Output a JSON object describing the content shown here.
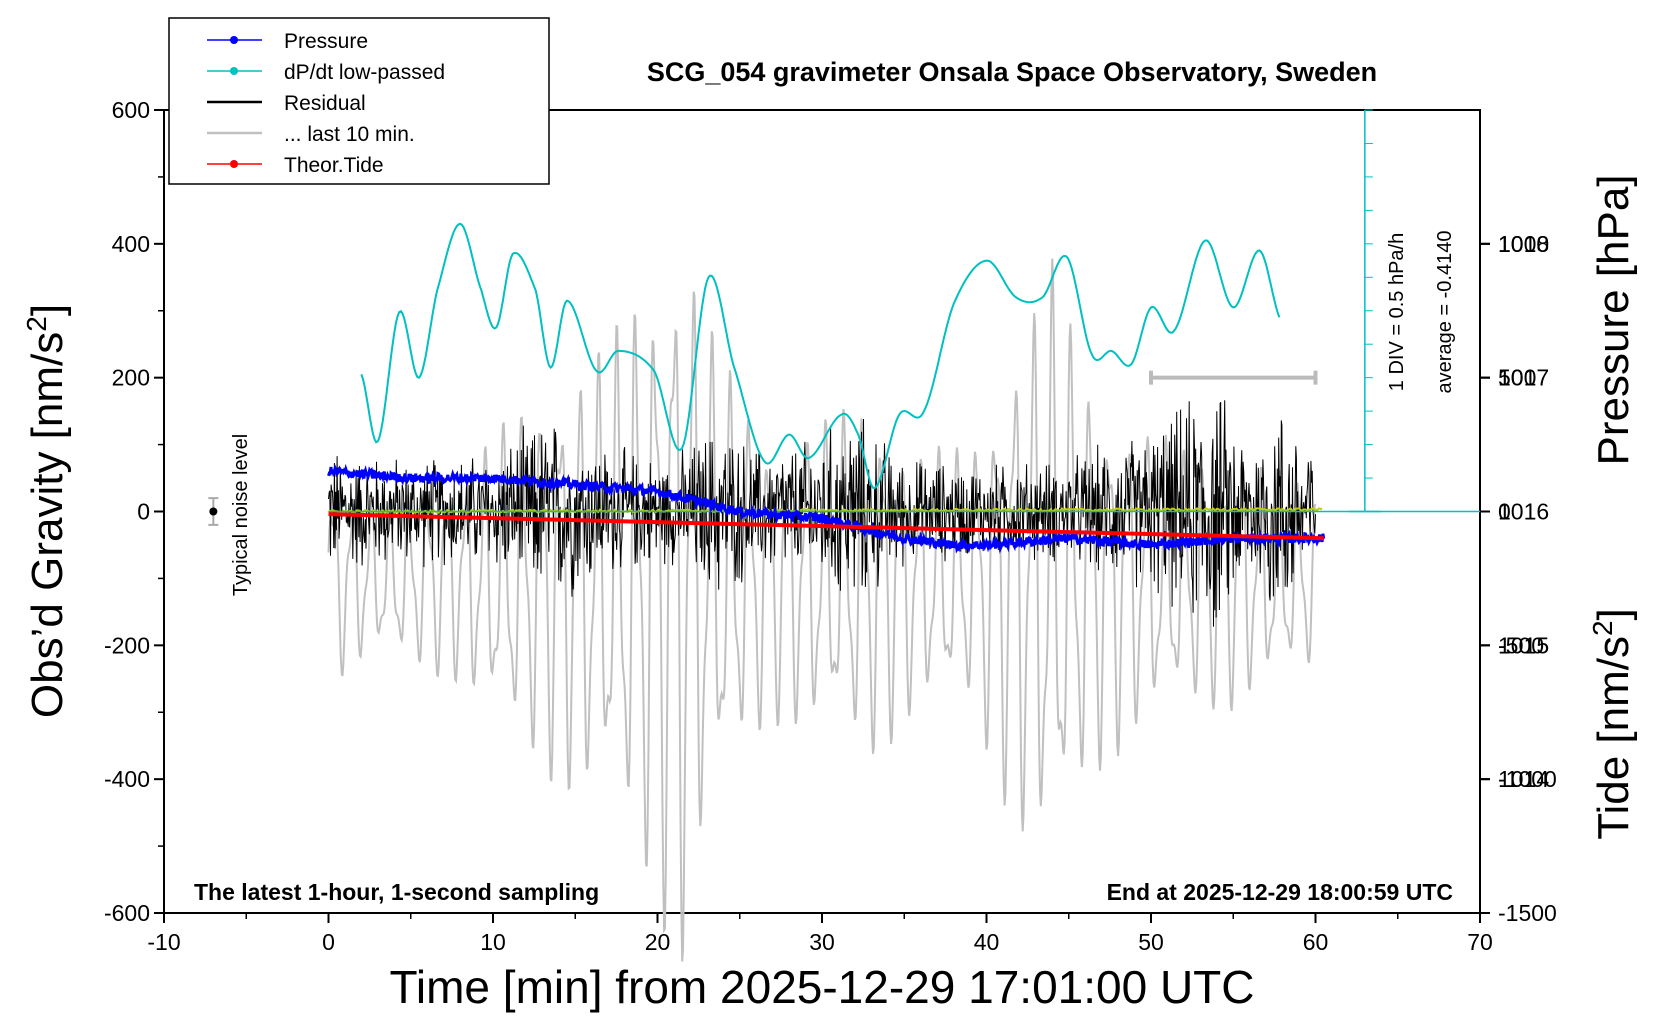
{
  "chart_data": {
    "type": "line",
    "title": "SCG_054 gravimeter Onsala Space Observatory, Sweden",
    "xlabel": "Time [min] from 2025-12-29 17:01:00 UTC",
    "ylabel_left_main": "Obs’d Gravity [nm/s",
    "ylabel_left_sup": "2",
    "ylabel_left_close": "]",
    "ylabel_right_top": "Pressure [hPa]",
    "ylabel_right_bottom_main": "Tide [nm/s",
    "ylabel_right_bottom_sup": "2",
    "ylabel_right_bottom_close": "]",
    "xlim": [
      -10,
      70
    ],
    "ylim": [
      -600,
      600
    ],
    "pressure_ylim": [
      1013,
      1019
    ],
    "tide_ylim": [
      -1500,
      1500
    ],
    "x_ticks": [
      "-10",
      "0",
      "10",
      "20",
      "30",
      "40",
      "50",
      "60",
      "70"
    ],
    "y_ticks": [
      "-600",
      "-400",
      "-200",
      "0",
      "200",
      "400",
      "600"
    ],
    "pressure_ticks": [
      "1014",
      "1015",
      "1016",
      "1017",
      "1018"
    ],
    "tide_ticks": [
      "-1500",
      "-1000",
      "-500",
      "0",
      "500",
      "1000"
    ],
    "legend": [
      {
        "label": "Pressure",
        "color": "#0000ff",
        "marker": true
      },
      {
        "label": "dP/dt low-passed",
        "color": "#00c0c0",
        "marker": true
      },
      {
        "label": "Residual",
        "color": "#000000",
        "marker": false
      },
      {
        "label": "... last 10 min.",
        "color": "#c0c0c0",
        "marker": false
      },
      {
        "label": "Theor.Tide",
        "color": "#ff0000",
        "marker": true
      }
    ],
    "annotations": {
      "noise_label": "Typical noise level",
      "dpdt_scale": "1 DIV = 0.5 hPa/h",
      "dpdt_average": "average = -0.4140",
      "bottom_left": "The latest 1-hour, 1-second sampling",
      "bottom_right": "End at 2025-12-29 18:00:59 UTC"
    },
    "series": [
      {
        "name": "Pressure",
        "axis": "pressure",
        "color": "#0000ff",
        "x": [
          0,
          5,
          10,
          15,
          20,
          25,
          30,
          35,
          38,
          40,
          45,
          50,
          55,
          60.5
        ],
        "y": [
          1016.3,
          1016.25,
          1016.25,
          1016.2,
          1016.15,
          1016.0,
          1015.95,
          1015.8,
          1015.75,
          1015.75,
          1015.8,
          1015.75,
          1015.8,
          1015.8
        ]
      },
      {
        "name": "dP/dt low-passed",
        "axis": "gravity",
        "color": "#00c0c0",
        "x": [
          2,
          3,
          4.3,
          5.5,
          6.6,
          8,
          9.3,
          10.2,
          11.2,
          12.6,
          13.5,
          14.5,
          16.3,
          17.6,
          19.8,
          21.5,
          23.1,
          24.6,
          26.5,
          28,
          29.2,
          31.2,
          32.2,
          33.2,
          34.7,
          36.2,
          38,
          40,
          41.8,
          43.4,
          44.9,
          46.4,
          47.6,
          48.8,
          50,
          51.4,
          53.3,
          55,
          56.6,
          57.9
        ],
        "y": [
          205,
          105,
          298,
          200,
          330,
          430,
          330,
          275,
          385,
          330,
          215,
          315,
          210,
          240,
          210,
          95,
          350,
          220,
          75,
          115,
          80,
          145,
          115,
          35,
          145,
          150,
          310,
          375,
          320,
          320,
          380,
          235,
          240,
          220,
          305,
          270,
          405,
          305,
          390,
          285
        ]
      },
      {
        "name": "Residual",
        "axis": "gravity",
        "color": "#000000",
        "envelope": {
          "x": [
            0,
            5,
            10,
            13.5,
            17,
            21,
            23.5,
            26,
            29,
            32,
            35,
            40,
            45,
            48,
            50,
            51.6,
            53.6,
            56,
            57.5,
            60
          ],
          "y": [
            110,
            90,
            100,
            165,
            110,
            90,
            150,
            110,
            120,
            170,
            90,
            80,
            90,
            120,
            140,
            170,
            230,
            120,
            200,
            120
          ]
        },
        "noise_std": 35
      },
      {
        "name": "... last 10 min.",
        "axis": "tide",
        "color": "#c0c0c0",
        "envelope": {
          "x": [
            0,
            3,
            8,
            10,
            14,
            17,
            19.5,
            21.5,
            23,
            25,
            27,
            30,
            33,
            36,
            39,
            42,
            44,
            46,
            49,
            52,
            55,
            58,
            60
          ],
          "y": [
            400,
            300,
            400,
            550,
            800,
            900,
            1200,
            1500,
            1000,
            700,
            550,
            600,
            700,
            500,
            500,
            1000,
            1200,
            800,
            600,
            500,
            500,
            400,
            350
          ]
        },
        "center": -250
      },
      {
        "name": "Theor.Tide",
        "axis": "tide",
        "color": "#ff0000",
        "x": [
          0,
          60.5
        ],
        "y": [
          -10,
          -100
        ]
      },
      {
        "name": "Noise baseline",
        "axis": "gravity",
        "color": "#c8c800",
        "x": [
          0,
          60.5
        ],
        "y": [
          0,
          3
        ]
      }
    ],
    "average_line": {
      "axis": "pressure",
      "value": 1016
    },
    "scale_bar": {
      "x_start": 50,
      "x_end": 60,
      "tide_value": 500
    },
    "noise_marker": {
      "x": -7,
      "y": 0,
      "error": 20
    }
  }
}
